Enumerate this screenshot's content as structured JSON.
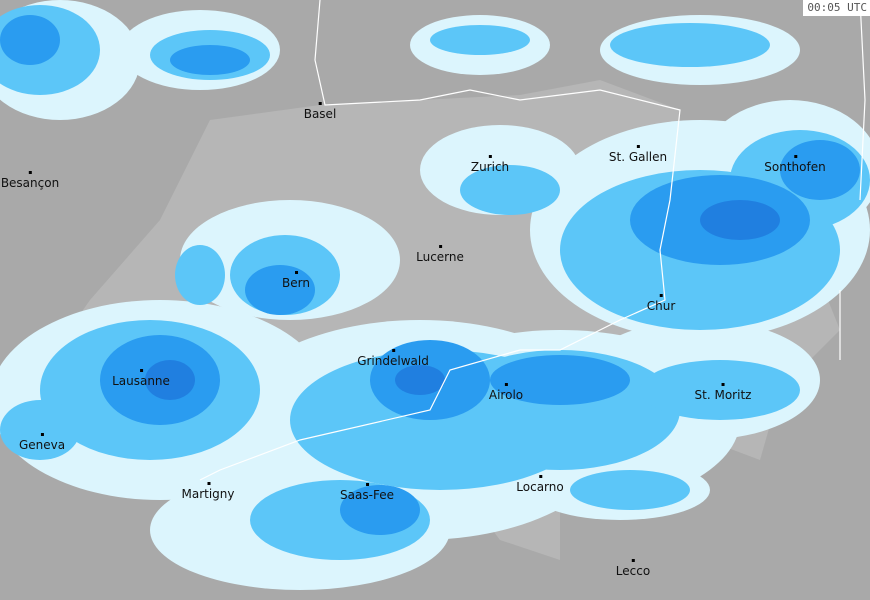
{
  "timestamp": "00:05 UTC",
  "colors": {
    "background": "#a9a9a9",
    "swiss": "#b6b6b6",
    "rain_light": "#dcf5fd",
    "rain_mid": "#5cc6f8",
    "rain_strong": "#2a9cf0",
    "rain_heavy": "#1e78dc",
    "border": "#ffffff"
  },
  "cities": [
    "Basel",
    "Besançon",
    "Zurich",
    "St. Gallen",
    "Sonthofen",
    "Lucerne",
    "Bern",
    "Chur",
    "Grindelwald",
    "Lausanne",
    "Airolo",
    "St. Moritz",
    "Geneva",
    "Martigny",
    "Saas-Fee",
    "Locarno",
    "Lecco"
  ]
}
